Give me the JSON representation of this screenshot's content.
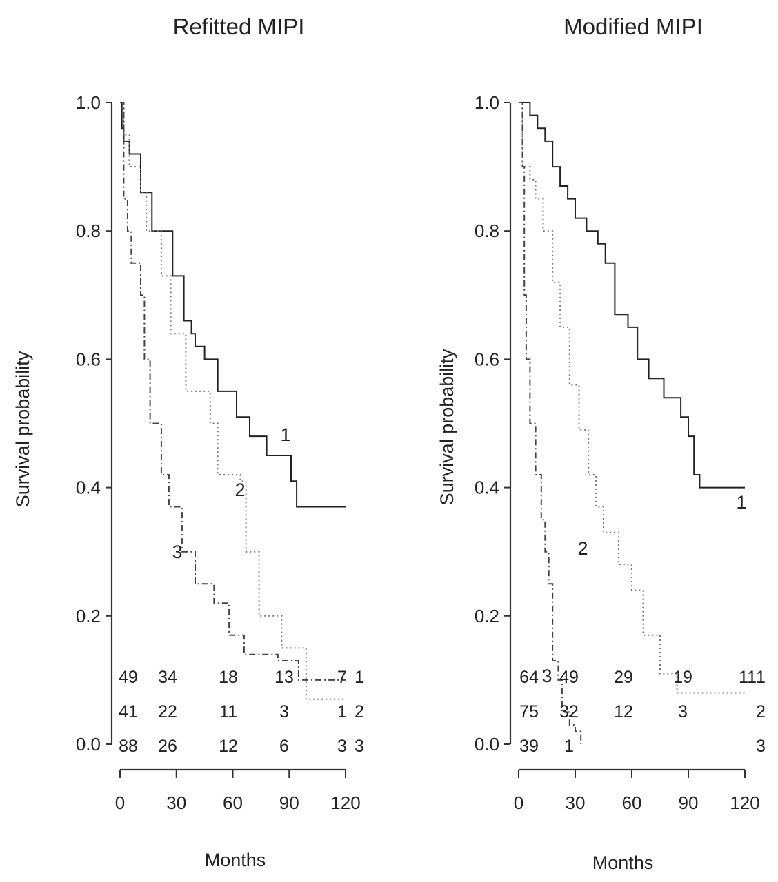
{
  "chart_data": [
    {
      "type": "line",
      "title": "Refitted MIPI",
      "xlabel": "Months",
      "ylabel": "Survival probability",
      "xlim": [
        0,
        120
      ],
      "ylim": [
        0,
        1
      ],
      "x_ticks": [
        "0",
        "30",
        "60",
        "90",
        "120"
      ],
      "y_ticks": [
        "0.0",
        "0.2",
        "0.4",
        "0.6",
        "0.8",
        "1.0"
      ],
      "grid": false,
      "series": [
        {
          "name": "1",
          "line_style": "solid",
          "points": [
            [
              0,
              1.0
            ],
            [
              1,
              0.96
            ],
            [
              2,
              0.94
            ],
            [
              5,
              0.92
            ],
            [
              11,
              0.86
            ],
            [
              17,
              0.8
            ],
            [
              28,
              0.73
            ],
            [
              34,
              0.66
            ],
            [
              38,
              0.64
            ],
            [
              40,
              0.62
            ],
            [
              45,
              0.6
            ],
            [
              52,
              0.55
            ],
            [
              62,
              0.51
            ],
            [
              69,
              0.48
            ],
            [
              78,
              0.45
            ],
            [
              91,
              0.41
            ],
            [
              94,
              0.37
            ],
            [
              120,
              0.37
            ]
          ]
        },
        {
          "name": "2",
          "line_style": "dotted",
          "points": [
            [
              0,
              1.0
            ],
            [
              2,
              0.95
            ],
            [
              5,
              0.9
            ],
            [
              11,
              0.86
            ],
            [
              14,
              0.8
            ],
            [
              22,
              0.73
            ],
            [
              27,
              0.64
            ],
            [
              35,
              0.55
            ],
            [
              48,
              0.5
            ],
            [
              52,
              0.42
            ],
            [
              64,
              0.41
            ],
            [
              67,
              0.3
            ],
            [
              74,
              0.2
            ],
            [
              86,
              0.15
            ],
            [
              99,
              0.07
            ],
            [
              120,
              0.07
            ]
          ]
        },
        {
          "name": "3",
          "line_style": "dash-dot",
          "points": [
            [
              0,
              1.0
            ],
            [
              2,
              0.85
            ],
            [
              4,
              0.8
            ],
            [
              6,
              0.75
            ],
            [
              11,
              0.7
            ],
            [
              13,
              0.6
            ],
            [
              16,
              0.5
            ],
            [
              22,
              0.42
            ],
            [
              26,
              0.37
            ],
            [
              33,
              0.3
            ],
            [
              40,
              0.25
            ],
            [
              50,
              0.22
            ],
            [
              58,
              0.17
            ],
            [
              66,
              0.14
            ],
            [
              84,
              0.13
            ],
            [
              95,
              0.1
            ],
            [
              120,
              0.1
            ]
          ]
        }
      ],
      "curve_labels": [
        "1",
        "2",
        "3"
      ],
      "risk_table": {
        "rows": [
          {
            "group": "1",
            "counts": [
              "49",
              "34",
              "18",
              "13",
              "7"
            ]
          },
          {
            "group": "2",
            "counts": [
              "41",
              "22",
              "11",
              "3",
              "1"
            ]
          },
          {
            "group": "3",
            "counts": [
              "88",
              "26",
              "12",
              "6",
              "3"
            ]
          }
        ]
      }
    },
    {
      "type": "line",
      "title": "Modified MIPI",
      "xlabel": "Months",
      "ylabel": "Survival probability",
      "xlim": [
        0,
        120
      ],
      "ylim": [
        0,
        1
      ],
      "x_ticks": [
        "0",
        "30",
        "60",
        "90",
        "120"
      ],
      "y_ticks": [
        "0.0",
        "0.2",
        "0.4",
        "0.6",
        "0.8",
        "1.0"
      ],
      "grid": false,
      "series": [
        {
          "name": "1",
          "line_style": "solid",
          "points": [
            [
              0,
              1.0
            ],
            [
              6,
              0.98
            ],
            [
              10,
              0.96
            ],
            [
              14,
              0.94
            ],
            [
              18,
              0.9
            ],
            [
              22,
              0.87
            ],
            [
              26,
              0.85
            ],
            [
              30,
              0.82
            ],
            [
              36,
              0.8
            ],
            [
              42,
              0.78
            ],
            [
              46,
              0.75
            ],
            [
              51,
              0.67
            ],
            [
              58,
              0.65
            ],
            [
              63,
              0.6
            ],
            [
              69,
              0.57
            ],
            [
              77,
              0.54
            ],
            [
              86,
              0.51
            ],
            [
              90,
              0.48
            ],
            [
              93,
              0.42
            ],
            [
              96,
              0.4
            ],
            [
              120,
              0.4
            ]
          ]
        },
        {
          "name": "2",
          "line_style": "dotted",
          "points": [
            [
              0,
              1.0
            ],
            [
              2,
              0.9
            ],
            [
              6,
              0.88
            ],
            [
              9,
              0.85
            ],
            [
              13,
              0.8
            ],
            [
              18,
              0.72
            ],
            [
              22,
              0.65
            ],
            [
              27,
              0.56
            ],
            [
              32,
              0.49
            ],
            [
              37,
              0.42
            ],
            [
              41,
              0.37
            ],
            [
              45,
              0.33
            ],
            [
              53,
              0.28
            ],
            [
              60,
              0.24
            ],
            [
              66,
              0.17
            ],
            [
              75,
              0.11
            ],
            [
              84,
              0.08
            ],
            [
              120,
              0.08
            ]
          ]
        },
        {
          "name": "3",
          "line_style": "dash-dot",
          "points": [
            [
              0,
              1.0
            ],
            [
              2,
              0.9
            ],
            [
              3,
              0.7
            ],
            [
              4,
              0.6
            ],
            [
              6,
              0.5
            ],
            [
              9,
              0.42
            ],
            [
              12,
              0.35
            ],
            [
              14,
              0.3
            ],
            [
              16,
              0.25
            ],
            [
              18,
              0.13
            ],
            [
              21,
              0.1
            ],
            [
              23,
              0.05
            ],
            [
              27,
              0.03
            ],
            [
              30,
              0.02
            ],
            [
              33,
              0.0
            ]
          ]
        }
      ],
      "curve_labels": [
        "1",
        "2",
        "3"
      ],
      "risk_table": {
        "rows": [
          {
            "group": "1",
            "counts": [
              "64",
              "49",
              "29",
              "19",
              "11"
            ]
          },
          {
            "group": "2",
            "counts": [
              "75",
              "32",
              "12",
              "3",
              ""
            ]
          },
          {
            "group": "3",
            "counts": [
              "39",
              "1",
              "",
              "",
              ""
            ]
          }
        ]
      }
    }
  ]
}
